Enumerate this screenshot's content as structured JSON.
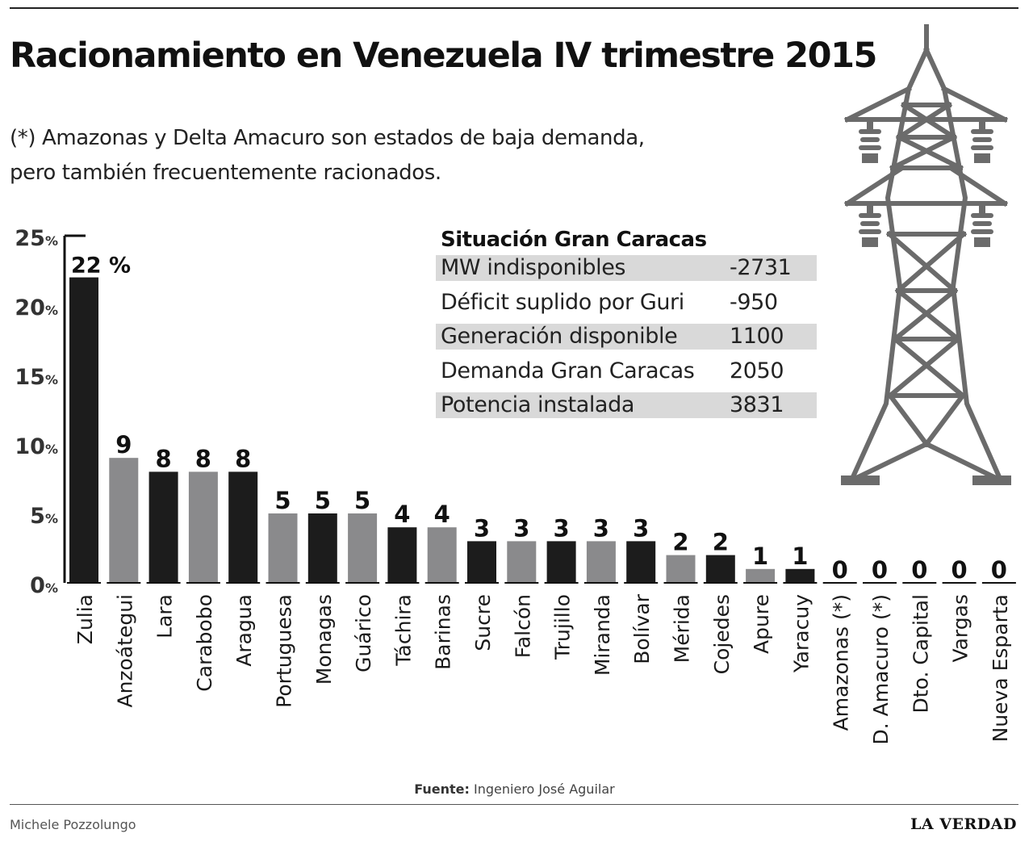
{
  "title": "Racionamiento en Venezuela IV trimestre 2015",
  "subtitle_lines": [
    "(*) Amazonas y Delta Amacuro son estados de baja demanda,",
    "pero también frecuentemente racionados."
  ],
  "chart_data": {
    "type": "bar",
    "categories": [
      "Zulia",
      "Anzoátegui",
      "Lara",
      "Carabobo",
      "Aragua",
      "Portuguesa",
      "Monagas",
      "Guárico",
      "Táchira",
      "Barinas",
      "Sucre",
      "Falcón",
      "Trujillo",
      "Miranda",
      "Bolívar",
      "Mérida",
      "Cojedes",
      "Apure",
      "Yaracuy",
      "Amazonas (*)",
      "D. Amacuro (*)",
      "Dto. Capital",
      "Vargas",
      "Nueva Esparta"
    ],
    "values": [
      22,
      9,
      8,
      8,
      8,
      5,
      5,
      5,
      4,
      4,
      3,
      3,
      3,
      3,
      3,
      2,
      2,
      1,
      1,
      0,
      0,
      0,
      0,
      0
    ],
    "data_labels": [
      "22 %",
      "9",
      "8",
      "8",
      "8",
      "5",
      "5",
      "5",
      "4",
      "4",
      "3",
      "3",
      "3",
      "3",
      "3",
      "2",
      "2",
      "1",
      "1",
      "0",
      "0",
      "0",
      "0",
      "0"
    ],
    "ylim": [
      0,
      25
    ],
    "yticks": [
      {
        "value": 0,
        "num": "0",
        "unit": "%"
      },
      {
        "value": 5,
        "num": "5",
        "unit": "%"
      },
      {
        "value": 10,
        "num": "10",
        "unit": "%"
      },
      {
        "value": 15,
        "num": "15",
        "unit": "%"
      },
      {
        "value": 20,
        "num": "20",
        "unit": "%"
      },
      {
        "value": 25,
        "num": "25",
        "unit": "%"
      }
    ],
    "grid": false,
    "bar_colors": {
      "dark": "#1c1c1c",
      "light": "#8a8a8c"
    }
  },
  "table": {
    "title": "Situación Gran Caracas",
    "rows": [
      {
        "label": "MW indisponibles",
        "value": "-2731"
      },
      {
        "label": "Déficit suplido por Guri",
        "value": "-950"
      },
      {
        "label": "Generación disponible",
        "value": "1100"
      },
      {
        "label": "Demanda Gran Caracas",
        "value": "2050"
      },
      {
        "label": "Potencia instalada",
        "value": "3831"
      }
    ]
  },
  "source": {
    "label": "Fuente:",
    "text": "Ingeniero José Aguilar"
  },
  "author": "Michele Pozzolungo",
  "logo": "LA VERDAD",
  "colors": {
    "tower": "#6b6b6b",
    "table_shade": "#d9d9d9"
  }
}
